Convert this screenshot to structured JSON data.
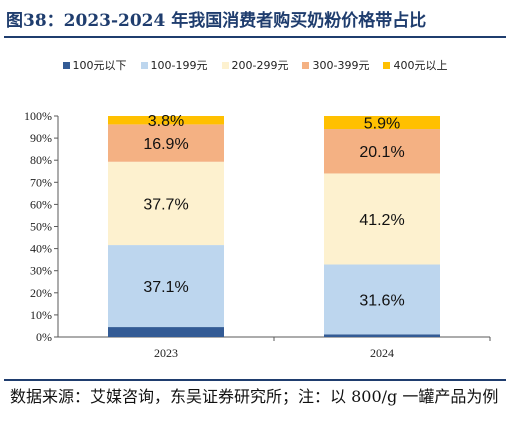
{
  "header": {
    "title": "图38：2023-2024 年我国消费者购买奶粉价格带占比"
  },
  "footer": {
    "source": "数据来源：艾媒咨询，东吴证券研究所；注：以 800/g 一罐产品为例"
  },
  "colors": {
    "title": "#1f3d6e",
    "grid": "#d9d9d9",
    "axis": "#595959"
  },
  "chart_data": {
    "type": "bar",
    "stacked": true,
    "categories": [
      "2023",
      "2024"
    ],
    "series": [
      {
        "name": "100元以下",
        "values": [
          4.5,
          1.2
        ],
        "labels": [
          "",
          ""
        ],
        "color": "#335b95"
      },
      {
        "name": "100-199元",
        "values": [
          37.1,
          31.6
        ],
        "labels": [
          "37.1%",
          "31.6%"
        ],
        "color": "#bdd6ee"
      },
      {
        "name": "200-299元",
        "values": [
          37.7,
          41.2
        ],
        "labels": [
          "37.7%",
          "41.2%"
        ],
        "color": "#fdf1cf"
      },
      {
        "name": "300-399元",
        "values": [
          16.9,
          20.1
        ],
        "labels": [
          "16.9%",
          "20.1%"
        ],
        "color": "#f4b183"
      },
      {
        "name": "400元以上",
        "values": [
          3.8,
          5.9
        ],
        "labels": [
          "3.8%",
          "5.9%"
        ],
        "color": "#ffc000"
      }
    ],
    "y_ticks": [
      "0%",
      "10%",
      "20%",
      "30%",
      "40%",
      "50%",
      "60%",
      "70%",
      "80%",
      "90%",
      "100%"
    ],
    "ylim": [
      0,
      100
    ],
    "legend_position": "top",
    "grid": false
  }
}
